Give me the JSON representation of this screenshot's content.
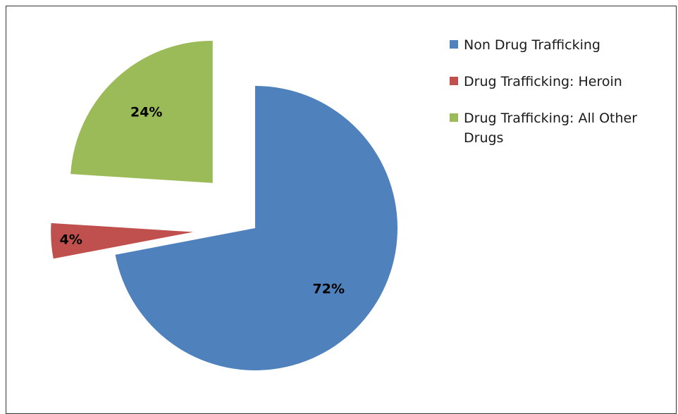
{
  "chart_data": {
    "type": "pie",
    "title": "",
    "legend_position": "right",
    "slices": [
      {
        "name": "Non Drug Trafficking",
        "value": 72,
        "label": "72%",
        "color": "#4F81BD",
        "exploded": false
      },
      {
        "name": "Drug Trafficking: Heroin",
        "value": 4,
        "label": "4%",
        "color": "#C0504D",
        "exploded": true
      },
      {
        "name": "Drug Trafficking: All Other Drugs",
        "value": 24,
        "label": "24%",
        "color": "#9BBB59",
        "exploded": true
      }
    ]
  }
}
